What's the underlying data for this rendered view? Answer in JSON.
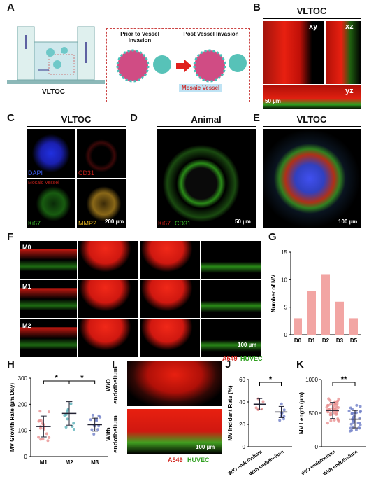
{
  "panels": {
    "A": "A",
    "B": "B",
    "C": "C",
    "D": "D",
    "E": "E",
    "F": "F",
    "G": "G",
    "H": "H",
    "I": "I",
    "J": "J",
    "K": "K"
  },
  "panelA": {
    "chip_label": "VLTOC",
    "prior": "Prior to Vessel Invasion",
    "post": "Post Vessel Invasion",
    "mosaic": "Mosaic Vessel"
  },
  "panelB": {
    "title": "VLTOC",
    "xy": "xy",
    "xz": "xz",
    "yz": "yz",
    "scale": "50 µm"
  },
  "panelC": {
    "title": "VLTOC",
    "dapi": "DAPI",
    "cd31": "CD31",
    "ki67": "Ki67",
    "mmp2": "MMP2",
    "mosaic": "Mosaic Vessel",
    "scale": "200 µm"
  },
  "panelD": {
    "title": "Animal",
    "ki67": "Ki67",
    "cd31": "CD31",
    "scale": "50 µm"
  },
  "panelE": {
    "title": "VLTOC",
    "scale": "100 µm"
  },
  "panelF": {
    "rows": [
      "M0",
      "M1",
      "M2"
    ],
    "scale": "100 µm",
    "legend_a549": "A549",
    "legend_huvec": "HUVEC"
  },
  "panelI": {
    "row1": "W/O endothelium",
    "row2": "With endothelium",
    "scale": "100 µm",
    "legend_a549": "A549",
    "legend_huvec": "HUVEC"
  },
  "chart_data": [
    {
      "id": "G",
      "type": "bar",
      "categories": [
        "D0",
        "D1",
        "D2",
        "D3",
        "D5"
      ],
      "values": [
        3,
        8,
        11,
        6,
        3
      ],
      "ylabel": "Number of MV",
      "ylim": [
        0,
        15
      ],
      "yticks": [
        0,
        5,
        10,
        15
      ],
      "color": "#f2a5a3"
    },
    {
      "id": "H",
      "type": "scatter",
      "categories": [
        "M1",
        "M2",
        "M3"
      ],
      "ylabel": "MV Growth Rate (µm/Day)",
      "ylim": [
        0,
        300
      ],
      "yticks": [
        0,
        100,
        200,
        300
      ],
      "means": [
        115,
        165,
        122
      ],
      "sd": [
        40,
        45,
        25
      ],
      "significance": [
        [
          "M1",
          "M2",
          "*"
        ],
        [
          "M2",
          "M3",
          "*"
        ]
      ],
      "colors": [
        "#e89090",
        "#5ab0b8",
        "#7080c8"
      ]
    },
    {
      "id": "J",
      "type": "scatter",
      "categories": [
        "W/O endothelium",
        "With endothelium"
      ],
      "ylabel": "MV Incident Rate (%)",
      "ylim": [
        0,
        60
      ],
      "yticks": [
        0,
        20,
        40,
        60
      ],
      "means": [
        38,
        31
      ],
      "sd": [
        5,
        5
      ],
      "significance": [
        [
          "W/O endothelium",
          "With endothelium",
          "*"
        ]
      ],
      "colors": [
        "#e89090",
        "#7080c8"
      ]
    },
    {
      "id": "K",
      "type": "scatter",
      "categories": [
        "W/O endothelium",
        "With endothelium"
      ],
      "ylabel": "MV Length (µm)",
      "ylim": [
        0,
        1000
      ],
      "yticks": [
        0,
        500,
        1000
      ],
      "means": [
        540,
        410
      ],
      "sd": [
        120,
        130
      ],
      "significance": [
        [
          "W/O endothelium",
          "With endothelium",
          "**"
        ]
      ],
      "colors": [
        "#e89090",
        "#7080c8"
      ]
    }
  ]
}
